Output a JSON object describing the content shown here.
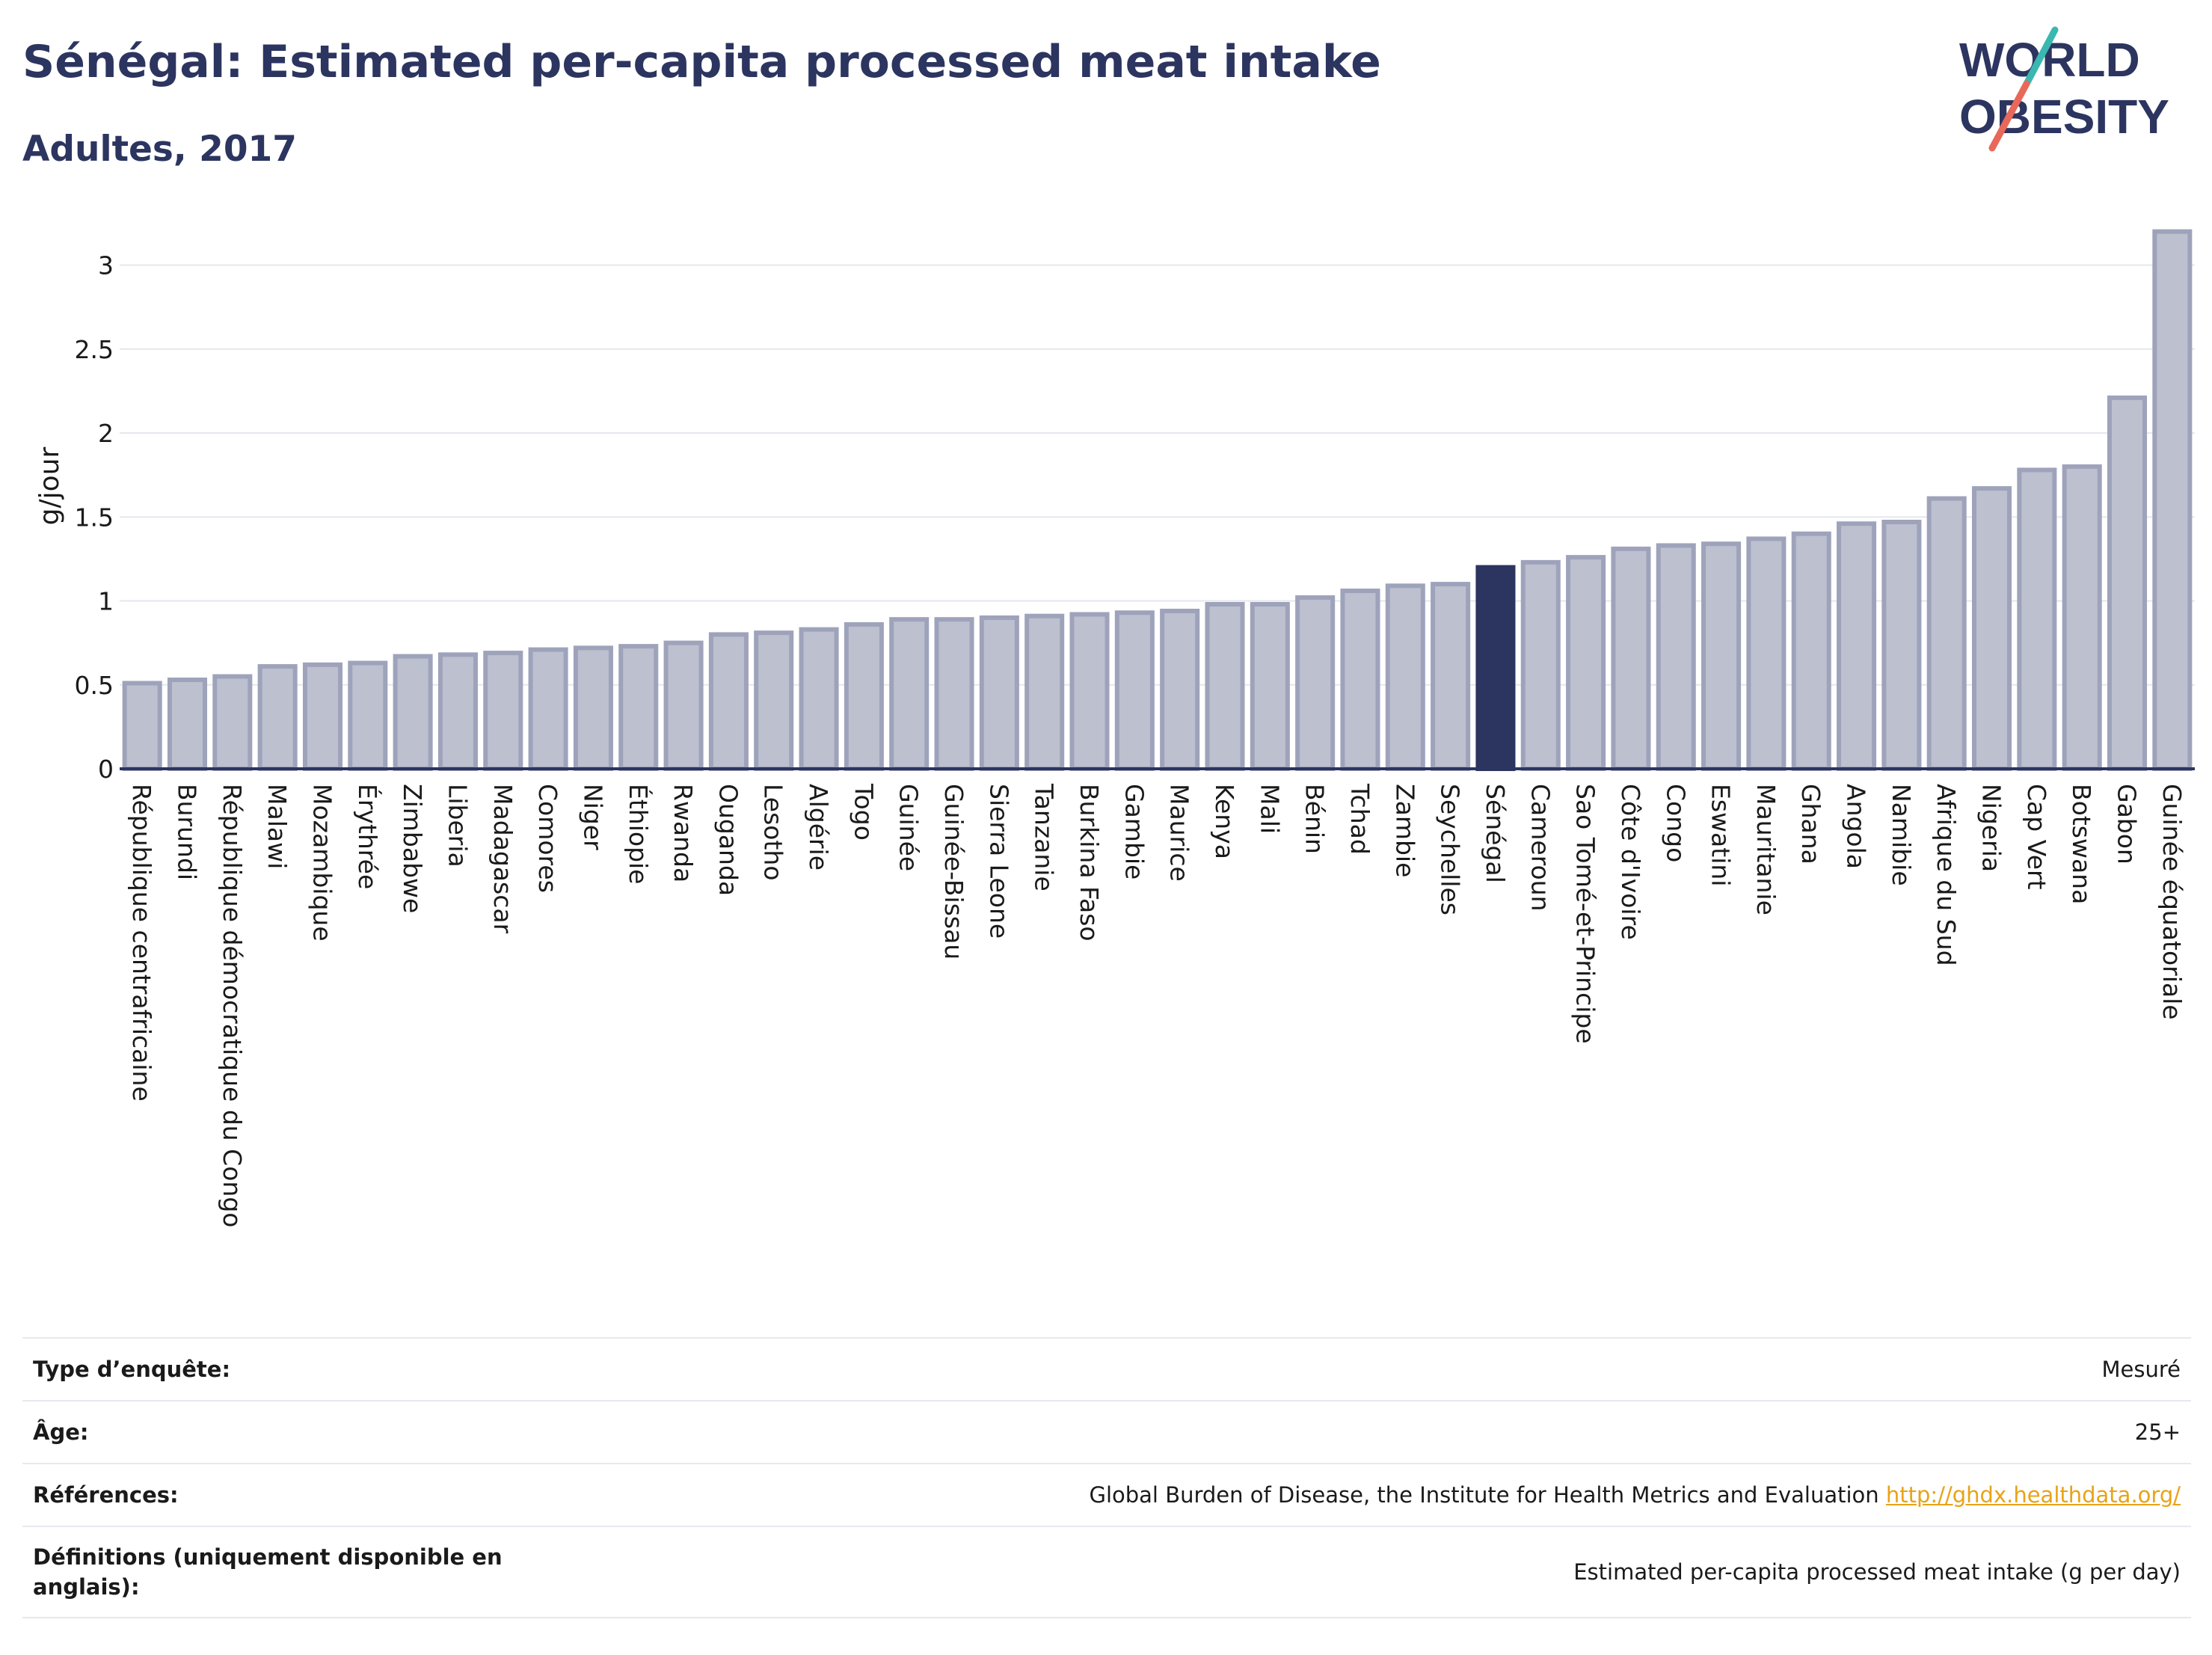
{
  "header": {
    "title": "Sénégal: Estimated per-capita processed meat intake",
    "subtitle": "Adultes, 2017"
  },
  "logo": {
    "line1": "WORLD",
    "line2": "OBESITY",
    "colors": {
      "text": "#2c3560",
      "slash_top": "#3ab8b0",
      "slash_bottom": "#e8685a"
    }
  },
  "colors": {
    "bar_fill": "#bcc0cf",
    "bar_stroke": "#9ea3bb",
    "highlight_fill": "#2c3560",
    "grid": "#e6e7ed",
    "axis": "#2c3560"
  },
  "chart_data": {
    "type": "bar",
    "title": "Sénégal: Estimated per-capita processed meat intake",
    "subtitle": "Adultes, 2017",
    "ylabel": "g/jour",
    "xlabel": "",
    "ylim": [
      0,
      3.25
    ],
    "yticks": [
      0,
      0.5,
      1,
      1.5,
      2,
      2.5,
      3
    ],
    "ytick_labels": [
      "0",
      "0.5",
      "1",
      "1.5",
      "2",
      "2.5",
      "3"
    ],
    "grid": true,
    "highlight": "Sénégal",
    "categories": [
      "République centrafricaine",
      "Burundi",
      "République démocratique du Congo",
      "Malawi",
      "Mozambique",
      "Érythrée",
      "Zimbabwe",
      "Liberia",
      "Madagascar",
      "Comores",
      "Niger",
      "Éthiopie",
      "Rwanda",
      "Ouganda",
      "Lesotho",
      "Algérie",
      "Togo",
      "Guinée",
      "Guinée-Bissau",
      "Sierra Leone",
      "Tanzanie",
      "Burkina Faso",
      "Gambie",
      "Maurice",
      "Kenya",
      "Mali",
      "Bénin",
      "Tchad",
      "Zambie",
      "Seychelles",
      "Sénégal",
      "Cameroun",
      "Sao Tomé-et-Principe",
      "Côte d'Ivoire",
      "Congo",
      "Eswatini",
      "Mauritanie",
      "Ghana",
      "Angola",
      "Namibie",
      "Afrique du Sud",
      "Nigeria",
      "Cap Vert",
      "Botswana",
      "Gabon",
      "Guinée équatoriale"
    ],
    "values": [
      0.51,
      0.53,
      0.55,
      0.61,
      0.62,
      0.63,
      0.67,
      0.68,
      0.69,
      0.71,
      0.72,
      0.73,
      0.75,
      0.8,
      0.81,
      0.83,
      0.86,
      0.89,
      0.89,
      0.9,
      0.91,
      0.92,
      0.93,
      0.94,
      0.98,
      0.98,
      1.02,
      1.06,
      1.09,
      1.1,
      1.2,
      1.23,
      1.26,
      1.31,
      1.33,
      1.34,
      1.37,
      1.4,
      1.46,
      1.47,
      1.61,
      1.67,
      1.78,
      1.8,
      2.21,
      3.2
    ]
  },
  "info_table": [
    {
      "label": "Type d’enquête:",
      "value": "Mesuré"
    },
    {
      "label": "Âge:",
      "value": "25+"
    },
    {
      "label": "Références:",
      "value": "Global Burden of Disease, the Institute for Health Metrics and Evaluation",
      "link": "http://ghdx.healthdata.org/"
    },
    {
      "label": "Définitions (uniquement disponible en anglais):",
      "value": "Estimated per-capita processed meat intake (g per day)"
    }
  ]
}
